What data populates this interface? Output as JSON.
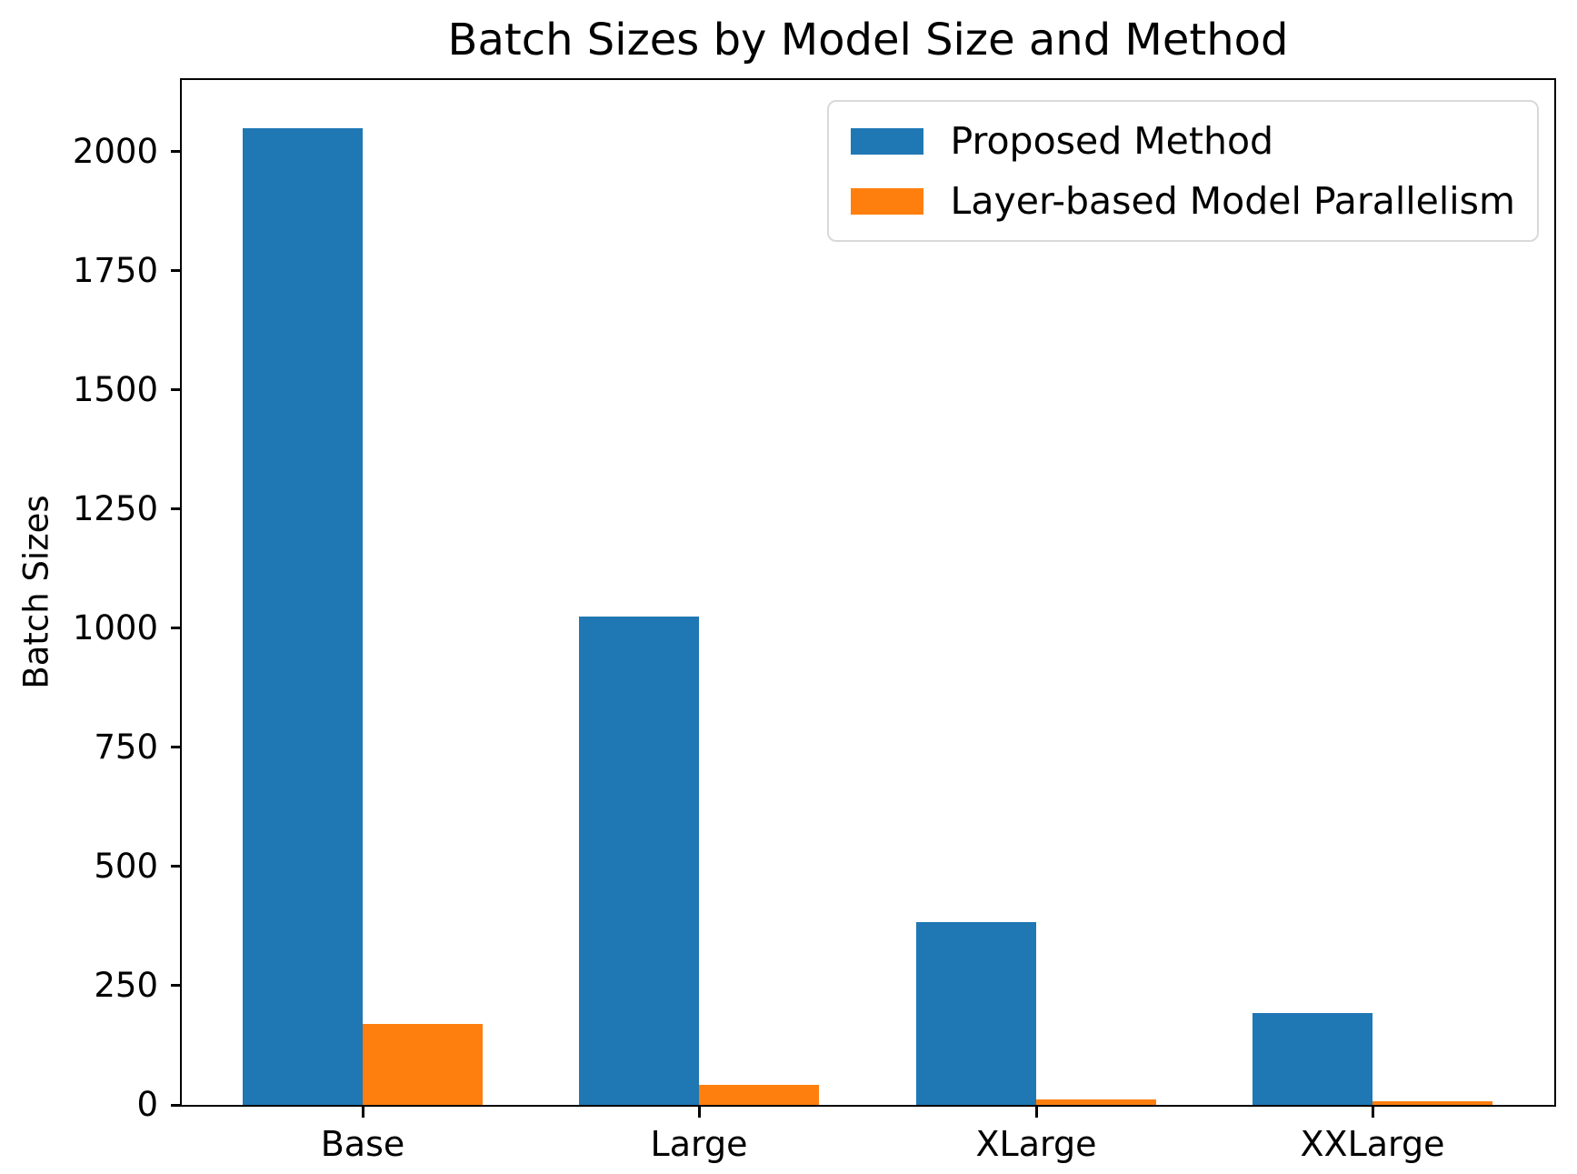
{
  "chart_data": {
    "type": "bar",
    "title": "Batch Sizes by Model Size and Method",
    "xlabel": "",
    "ylabel": "Batch Sizes",
    "categories": [
      "Base",
      "Large",
      "XLarge",
      "XXLarge"
    ],
    "series": [
      {
        "name": "Proposed Method",
        "color": "#1f77b4",
        "values": [
          2048,
          1024,
          384,
          192
        ]
      },
      {
        "name": "Layer-based Model Parallelism",
        "color": "#ff7f0e",
        "values": [
          170,
          42,
          12,
          8
        ]
      }
    ],
    "ylim": [
      0,
      2150
    ],
    "yticks": [
      0,
      250,
      500,
      750,
      1000,
      1250,
      1500,
      1750,
      2000
    ],
    "grid": false,
    "legend_position": "upper right",
    "spine_color": "#000000",
    "background_color": "#ffffff"
  }
}
